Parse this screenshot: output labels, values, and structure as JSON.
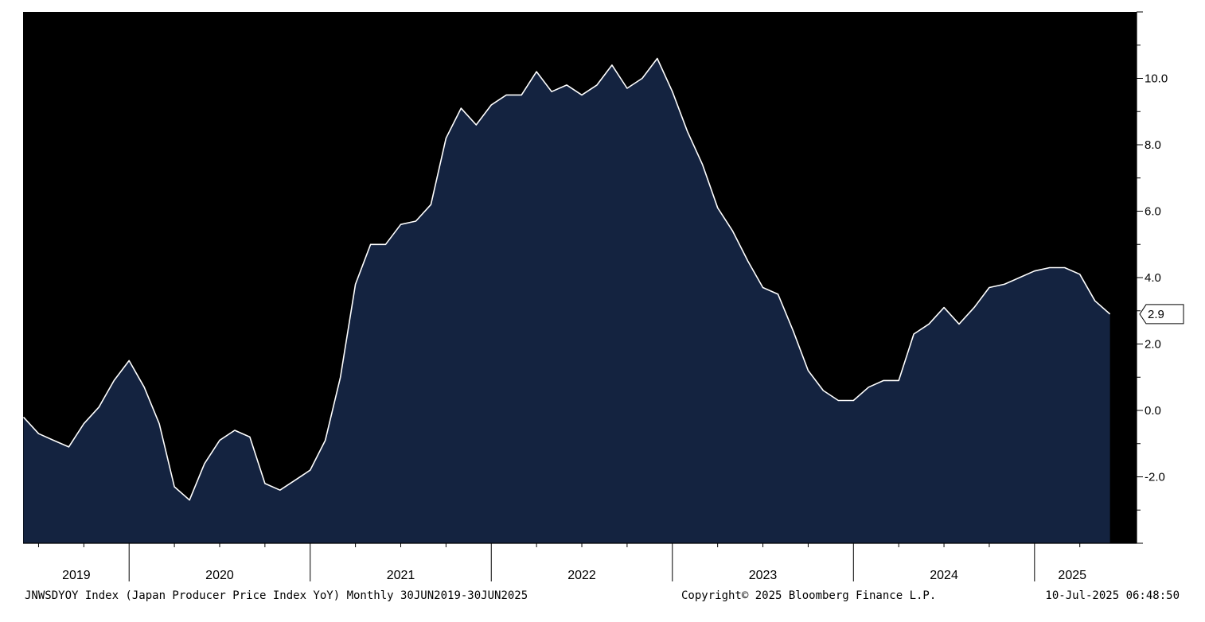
{
  "chart_data": {
    "type": "area",
    "series": [
      {
        "values": [
          -0.2,
          -0.7,
          -0.9,
          -1.1,
          -0.4,
          0.1,
          0.9,
          1.5,
          0.7,
          -0.4,
          -2.3,
          -2.7,
          -1.6,
          -0.9,
          -0.6,
          -0.8,
          -2.2,
          -2.4,
          -2.1,
          -1.8,
          -0.9,
          1.0,
          3.8,
          5.0,
          5.0,
          5.6,
          5.7,
          6.2,
          8.2,
          9.1,
          8.6,
          9.2,
          9.5,
          9.5,
          10.2,
          9.6,
          9.8,
          9.5,
          9.8,
          10.4,
          9.7,
          10.0,
          10.6,
          9.6,
          8.4,
          7.4,
          6.1,
          5.4,
          4.5,
          3.7,
          3.5,
          2.4,
          1.2,
          0.6,
          0.3,
          0.3,
          0.7,
          0.9,
          0.9,
          2.3,
          2.6,
          3.1,
          2.6,
          3.1,
          3.7,
          3.8,
          4.0,
          4.2,
          4.3,
          4.3,
          4.1,
          3.3,
          2.9
        ]
      }
    ],
    "x_start": "2019-06",
    "x_end": "2025-06",
    "x_frequency": "Monthly",
    "x_ticks": [
      "2019",
      "2020",
      "2021",
      "2022",
      "2023",
      "2024",
      "2025"
    ],
    "y_ticks": [
      "10.0",
      "8.0",
      "6.0",
      "4.0",
      "2.0",
      "0.0",
      "-2.0"
    ],
    "ylim": [
      -4,
      12
    ],
    "last_value_label": "2.9",
    "grid": false,
    "colors": {
      "plot_background": "#000000",
      "area_fill": "#142340",
      "line": "#ffffff",
      "axis_background": "#ffffff",
      "axis_line": "#000000"
    }
  },
  "footer": {
    "description": "JNWSDYOY Index (Japan Producer Price Index YoY)  Monthly 30JUN2019-30JUN2025",
    "copyright": "Copyright© 2025 Bloomberg Finance L.P.",
    "timestamp": "10-Jul-2025 06:48:50"
  }
}
